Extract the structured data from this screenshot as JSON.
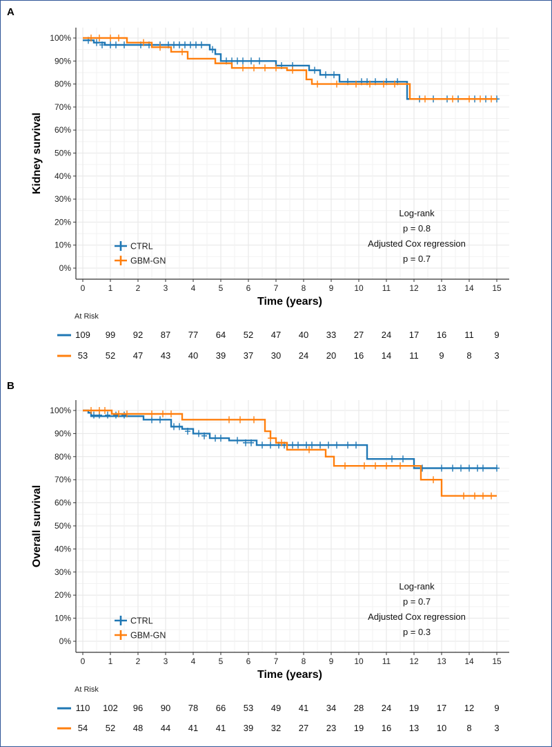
{
  "chart_data": [
    {
      "type": "line",
      "panel": "A",
      "ylabel": "Kidney survival",
      "xlabel": "Time (years)",
      "xlim": [
        0,
        15
      ],
      "ylim": [
        0,
        100
      ],
      "y_ticks": [
        "0%",
        "10%",
        "20%",
        "30%",
        "40%",
        "50%",
        "60%",
        "70%",
        "80%",
        "90%",
        "100%"
      ],
      "x_ticks": [
        "0",
        "1",
        "2",
        "3",
        "4",
        "5",
        "6",
        "7",
        "8",
        "9",
        "10",
        "11",
        "12",
        "13",
        "14",
        "15"
      ],
      "grid": true,
      "legend_position": "bottom-left",
      "annotations": [
        "Log-rank",
        "p = 0.8",
        "Adjusted Cox regression",
        "p = 0.7"
      ],
      "series": [
        {
          "name": "CTRL",
          "color": "#1f77b4",
          "steps": [
            [
              0,
              99
            ],
            [
              0.4,
              98
            ],
            [
              0.8,
              97
            ],
            [
              2,
              97
            ],
            [
              2.2,
              97
            ],
            [
              4.4,
              97
            ],
            [
              4.6,
              95
            ],
            [
              4.8,
              93
            ],
            [
              5,
              90
            ],
            [
              7,
              88
            ],
            [
              8.2,
              86
            ],
            [
              8.6,
              84
            ],
            [
              9.3,
              81
            ],
            [
              11.7,
              81
            ],
            [
              11.75,
              73.5
            ],
            [
              15,
              73.5
            ]
          ],
          "censors": [
            [
              0.2,
              99
            ],
            [
              0.5,
              98
            ],
            [
              0.7,
              97
            ],
            [
              1,
              97
            ],
            [
              1.2,
              97
            ],
            [
              1.5,
              97
            ],
            [
              2.1,
              97
            ],
            [
              2.4,
              97
            ],
            [
              2.8,
              97
            ],
            [
              3.1,
              97
            ],
            [
              3.3,
              97
            ],
            [
              3.5,
              97
            ],
            [
              3.7,
              97
            ],
            [
              3.9,
              97
            ],
            [
              4.1,
              97
            ],
            [
              4.3,
              97
            ],
            [
              4.7,
              95
            ],
            [
              5.2,
              90
            ],
            [
              5.4,
              90
            ],
            [
              5.6,
              90
            ],
            [
              5.8,
              90
            ],
            [
              6.1,
              90
            ],
            [
              6.4,
              90
            ],
            [
              7.2,
              88
            ],
            [
              7.6,
              88
            ],
            [
              8.4,
              86
            ],
            [
              8.8,
              84
            ],
            [
              9.1,
              84
            ],
            [
              9.6,
              81
            ],
            [
              10.1,
              81
            ],
            [
              10.3,
              81
            ],
            [
              10.6,
              81
            ],
            [
              11,
              81
            ],
            [
              11.4,
              81
            ],
            [
              12.2,
              73.5
            ],
            [
              12.7,
              73.5
            ],
            [
              13.2,
              73.5
            ],
            [
              13.6,
              73.5
            ],
            [
              14.2,
              73.5
            ],
            [
              14.6,
              73.5
            ],
            [
              15,
              73.5
            ]
          ]
        },
        {
          "name": "GBM-GN",
          "color": "#ff7f0e",
          "steps": [
            [
              0,
              100
            ],
            [
              1.5,
              100
            ],
            [
              1.6,
              98
            ],
            [
              2.3,
              98
            ],
            [
              2.5,
              96
            ],
            [
              3.1,
              96
            ],
            [
              3.2,
              94
            ],
            [
              3.6,
              94
            ],
            [
              3.8,
              91
            ],
            [
              4.7,
              91
            ],
            [
              4.8,
              89
            ],
            [
              5.3,
              89
            ],
            [
              5.4,
              87
            ],
            [
              7.3,
              87
            ],
            [
              7.4,
              86
            ],
            [
              7.9,
              86
            ],
            [
              8.1,
              82
            ],
            [
              8.3,
              80
            ],
            [
              11.8,
              80
            ],
            [
              11.85,
              73.5
            ],
            [
              15,
              73.5
            ]
          ],
          "censors": [
            [
              0.3,
              100
            ],
            [
              0.6,
              100
            ],
            [
              1,
              100
            ],
            [
              1.3,
              100
            ],
            [
              2.2,
              98
            ],
            [
              2.8,
              96
            ],
            [
              3.6,
              94
            ],
            [
              5.8,
              87
            ],
            [
              6.2,
              87
            ],
            [
              6.6,
              87
            ],
            [
              7.0,
              87
            ],
            [
              7.6,
              86
            ],
            [
              8.5,
              80
            ],
            [
              9.2,
              80
            ],
            [
              9.9,
              80
            ],
            [
              10.4,
              80
            ],
            [
              10.9,
              80
            ],
            [
              11.3,
              80
            ],
            [
              12.4,
              73.5
            ],
            [
              13.4,
              73.5
            ],
            [
              14,
              73.5
            ],
            [
              14.4,
              73.5
            ],
            [
              14.8,
              73.5
            ]
          ]
        }
      ],
      "at_risk": {
        "title": "At Risk",
        "rows": [
          {
            "name": "CTRL",
            "color": "#1f77b4",
            "values": [
              "109",
              "99",
              "92",
              "87",
              "77",
              "64",
              "52",
              "47",
              "40",
              "33",
              "27",
              "24",
              "17",
              "16",
              "11",
              "9"
            ]
          },
          {
            "name": "GBM-GN",
            "color": "#ff7f0e",
            "values": [
              "53",
              "52",
              "47",
              "43",
              "40",
              "39",
              "37",
              "30",
              "24",
              "20",
              "16",
              "14",
              "11",
              "9",
              "8",
              "3"
            ]
          }
        ]
      }
    },
    {
      "type": "line",
      "panel": "B",
      "ylabel": "Overall survival",
      "xlabel": "Time (years)",
      "xlim": [
        0,
        15
      ],
      "ylim": [
        0,
        100
      ],
      "y_ticks": [
        "0%",
        "10%",
        "20%",
        "30%",
        "40%",
        "50%",
        "60%",
        "70%",
        "80%",
        "90%",
        "100%"
      ],
      "x_ticks": [
        "0",
        "1",
        "2",
        "3",
        "4",
        "5",
        "6",
        "7",
        "8",
        "9",
        "10",
        "11",
        "12",
        "13",
        "14",
        "15"
      ],
      "grid": true,
      "legend_position": "bottom-left",
      "annotations": [
        "Log-rank",
        "p = 0.7",
        "Adjusted Cox regression",
        "p = 0.3"
      ],
      "series": [
        {
          "name": "CTRL",
          "color": "#1f77b4",
          "steps": [
            [
              0,
              100
            ],
            [
              0.2,
              99
            ],
            [
              0.3,
              97.5
            ],
            [
              2,
              97.5
            ],
            [
              2.2,
              96
            ],
            [
              3,
              96
            ],
            [
              3.2,
              93
            ],
            [
              3.6,
              92
            ],
            [
              4,
              90
            ],
            [
              4.6,
              88
            ],
            [
              5.3,
              87
            ],
            [
              6.3,
              85
            ],
            [
              10.2,
              85
            ],
            [
              10.3,
              79
            ],
            [
              11.9,
              79
            ],
            [
              12,
              75
            ],
            [
              15,
              75
            ]
          ],
          "censors": [
            [
              0.4,
              98
            ],
            [
              0.6,
              98
            ],
            [
              0.9,
              98
            ],
            [
              1.2,
              98
            ],
            [
              1.5,
              98
            ],
            [
              2.5,
              96
            ],
            [
              2.8,
              96
            ],
            [
              3.3,
              93
            ],
            [
              3.5,
              93
            ],
            [
              3.8,
              91
            ],
            [
              4.2,
              90
            ],
            [
              4.4,
              89
            ],
            [
              4.8,
              88
            ],
            [
              5,
              88
            ],
            [
              5.6,
              87
            ],
            [
              5.9,
              86
            ],
            [
              6.1,
              86
            ],
            [
              6.5,
              85
            ],
            [
              6.8,
              85
            ],
            [
              7.1,
              85
            ],
            [
              7.3,
              85
            ],
            [
              7.6,
              85
            ],
            [
              7.8,
              85
            ],
            [
              8.1,
              85
            ],
            [
              8.3,
              85
            ],
            [
              8.6,
              85
            ],
            [
              8.9,
              85
            ],
            [
              9.2,
              85
            ],
            [
              9.6,
              85
            ],
            [
              9.9,
              85
            ],
            [
              11.2,
              79
            ],
            [
              11.6,
              79
            ],
            [
              12.3,
              75
            ],
            [
              13,
              75
            ],
            [
              13.4,
              75
            ],
            [
              13.7,
              75
            ],
            [
              14,
              75
            ],
            [
              14.3,
              75
            ],
            [
              14.5,
              75
            ],
            [
              15,
              75
            ]
          ]
        },
        {
          "name": "GBM-GN",
          "color": "#ff7f0e",
          "steps": [
            [
              0,
              100
            ],
            [
              1,
              100
            ],
            [
              1.05,
              98.5
            ],
            [
              3.5,
              98.5
            ],
            [
              3.6,
              96
            ],
            [
              6.5,
              96
            ],
            [
              6.6,
              91
            ],
            [
              6.8,
              88
            ],
            [
              7,
              86
            ],
            [
              7.3,
              86
            ],
            [
              7.4,
              83
            ],
            [
              8.7,
              83
            ],
            [
              8.8,
              80
            ],
            [
              9.0,
              80
            ],
            [
              9.1,
              76
            ],
            [
              11.8,
              76
            ],
            [
              12.2,
              76
            ],
            [
              12.25,
              70
            ],
            [
              12.9,
              70
            ],
            [
              13,
              63
            ],
            [
              15,
              63
            ]
          ],
          "censors": [
            [
              0.3,
              100
            ],
            [
              0.6,
              100
            ],
            [
              0.8,
              100
            ],
            [
              1.3,
              98.5
            ],
            [
              1.6,
              98.5
            ],
            [
              2.5,
              98.5
            ],
            [
              2.9,
              98.5
            ],
            [
              3.2,
              98.5
            ],
            [
              5.3,
              96
            ],
            [
              5.7,
              96
            ],
            [
              6.2,
              96
            ],
            [
              6.8,
              88
            ],
            [
              7.2,
              86
            ],
            [
              8.2,
              83
            ],
            [
              9.5,
              76
            ],
            [
              10.2,
              76
            ],
            [
              10.6,
              76
            ],
            [
              11,
              76
            ],
            [
              11.5,
              76
            ],
            [
              12.7,
              70
            ],
            [
              13.8,
              63
            ],
            [
              14.2,
              63
            ],
            [
              14.5,
              63
            ],
            [
              14.8,
              63
            ]
          ]
        }
      ],
      "at_risk": {
        "title": "At Risk",
        "rows": [
          {
            "name": "CTRL",
            "color": "#1f77b4",
            "values": [
              "110",
              "102",
              "96",
              "90",
              "78",
              "66",
              "53",
              "49",
              "41",
              "34",
              "28",
              "24",
              "19",
              "17",
              "12",
              "9"
            ]
          },
          {
            "name": "GBM-GN",
            "color": "#ff7f0e",
            "values": [
              "54",
              "52",
              "48",
              "44",
              "41",
              "41",
              "39",
              "32",
              "27",
              "23",
              "19",
              "16",
              "13",
              "10",
              "8",
              "3"
            ]
          }
        ]
      }
    }
  ]
}
